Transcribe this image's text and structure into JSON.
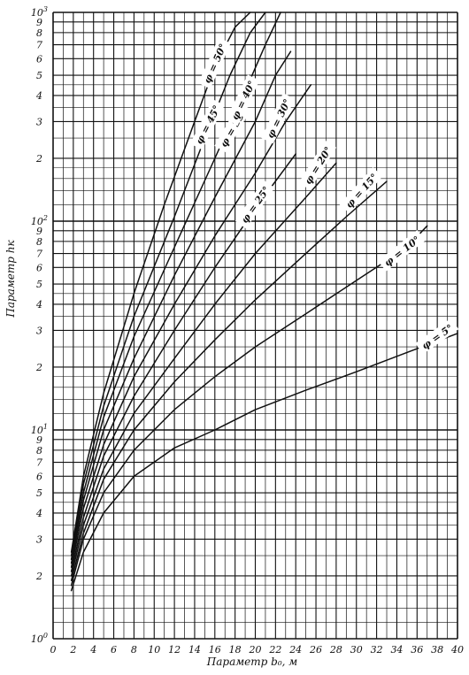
{
  "chart_data": {
    "type": "line",
    "title": "",
    "xlabel": "Параметр b₀, м",
    "ylabel": "Параметр hк",
    "xlim": [
      0,
      40
    ],
    "ylim": [
      1,
      1000
    ],
    "y_scale": "log",
    "grid": true,
    "x_ticks": [
      "0",
      "2",
      "4",
      "6",
      "8",
      "10",
      "12",
      "14",
      "16",
      "18",
      "20",
      "22",
      "24",
      "26",
      "28",
      "30",
      "32",
      "34",
      "36",
      "38",
      "40"
    ],
    "y_ticks": [
      {
        "value": 1,
        "base": "10",
        "exp": "0"
      },
      {
        "value": 2,
        "label": "2"
      },
      {
        "value": 3,
        "label": "3"
      },
      {
        "value": 4,
        "label": "4"
      },
      {
        "value": 5,
        "label": "5"
      },
      {
        "value": 6,
        "label": "6"
      },
      {
        "value": 7,
        "label": "7"
      },
      {
        "value": 8,
        "label": "8"
      },
      {
        "value": 9,
        "label": "9"
      },
      {
        "value": 10,
        "base": "10",
        "exp": "1"
      },
      {
        "value": 20,
        "label": "2"
      },
      {
        "value": 30,
        "label": "3"
      },
      {
        "value": 40,
        "label": "4"
      },
      {
        "value": 50,
        "label": "5"
      },
      {
        "value": 60,
        "label": "6"
      },
      {
        "value": 70,
        "label": "7"
      },
      {
        "value": 80,
        "label": "8"
      },
      {
        "value": 90,
        "label": "9"
      },
      {
        "value": 100,
        "base": "10",
        "exp": "2"
      },
      {
        "value": 200,
        "label": "2"
      },
      {
        "value": 300,
        "label": "3"
      },
      {
        "value": 400,
        "label": "4"
      },
      {
        "value": 500,
        "label": "5"
      },
      {
        "value": 600,
        "label": "6"
      },
      {
        "value": 700,
        "label": "7"
      },
      {
        "value": 800,
        "label": "8"
      },
      {
        "value": 900,
        "label": "9"
      },
      {
        "value": 1000,
        "base": "10",
        "exp": "3"
      }
    ],
    "series": [
      {
        "name": "φ = 5°",
        "x": [
          1.8,
          3,
          5,
          8,
          12,
          16,
          20,
          25,
          30,
          35,
          40
        ],
        "y": [
          1.7,
          2.6,
          4.0,
          6.0,
          8.2,
          10.0,
          12.5,
          15.5,
          19.0,
          23.5,
          29.0
        ]
      },
      {
        "name": "φ = 10°",
        "x": [
          1.8,
          3,
          5,
          8,
          12,
          16,
          20,
          25,
          30,
          35,
          37
        ],
        "y": [
          1.8,
          3.0,
          5.0,
          8.0,
          12.5,
          18.0,
          25.0,
          36.0,
          52.0,
          75.0,
          95.0
        ]
      },
      {
        "name": "φ = 15°",
        "x": [
          1.8,
          3,
          5,
          8,
          12,
          16,
          20,
          25,
          29,
          33
        ],
        "y": [
          1.9,
          3.2,
          5.8,
          10.0,
          17.0,
          27.0,
          42.0,
          70.0,
          105.0,
          155.0
        ]
      },
      {
        "name": "φ = 20°",
        "x": [
          1.8,
          3,
          5,
          8,
          12,
          16,
          20,
          25,
          28
        ],
        "y": [
          2.0,
          3.5,
          6.5,
          12.0,
          22.0,
          40.0,
          70.0,
          130.0,
          190.0
        ]
      },
      {
        "name": "φ = 25°",
        "x": [
          1.8,
          3,
          5,
          8,
          12,
          16,
          20,
          24
        ],
        "y": [
          2.1,
          3.8,
          7.5,
          14.5,
          30.0,
          60.0,
          115.0,
          210.0
        ]
      },
      {
        "name": "φ = 30°",
        "x": [
          1.8,
          3,
          5,
          8,
          12,
          16,
          20,
          23,
          25.5
        ],
        "y": [
          2.2,
          4.2,
          8.5,
          18.0,
          40.0,
          85.0,
          170.0,
          300.0,
          450.0
        ]
      },
      {
        "name": "φ = 35°",
        "x": [
          1.8,
          3,
          5,
          8,
          12,
          16,
          20,
          22,
          23.5
        ],
        "y": [
          2.3,
          4.6,
          10.0,
          22.0,
          55.0,
          130.0,
          300.0,
          500.0,
          650.0
        ]
      },
      {
        "name": "φ = 40°",
        "x": [
          1.8,
          3,
          5,
          8,
          12,
          16,
          19,
          21,
          22.5
        ],
        "y": [
          2.4,
          5.0,
          11.5,
          28.0,
          75.0,
          200.0,
          420.0,
          700.0,
          1000.0
        ]
      },
      {
        "name": "φ = 45°",
        "x": [
          1.8,
          3,
          5,
          8,
          12,
          15,
          17.5,
          19.5,
          21
        ],
        "y": [
          2.5,
          5.5,
          13.0,
          35.0,
          105.0,
          250.0,
          500.0,
          800.0,
          1000.0
        ]
      },
      {
        "name": "φ = 50°",
        "x": [
          1.8,
          3,
          5,
          8,
          11,
          14,
          16,
          18,
          19.5
        ],
        "y": [
          2.6,
          6.0,
          15.0,
          45.0,
          120.0,
          300.0,
          550.0,
          850.0,
          1000.0
        ]
      }
    ],
    "curve_labels": [
      {
        "text": "φ = 5°",
        "x": 38.0,
        "y": 28.0,
        "angle": -35
      },
      {
        "text": "φ = 10°",
        "x": 34.5,
        "y": 72.0,
        "angle": -38
      },
      {
        "text": "φ = 15°",
        "x": 30.5,
        "y": 140.0,
        "angle": -48
      },
      {
        "text": "φ = 20°",
        "x": 26.2,
        "y": 185.0,
        "angle": -58
      },
      {
        "text": "φ = 25°",
        "x": 20.0,
        "y": 120.0,
        "angle": -55
      },
      {
        "text": "φ = 30°",
        "x": 22.3,
        "y": 310.0,
        "angle": -64
      },
      {
        "text": "φ = 35°",
        "x": 17.8,
        "y": 280.0,
        "angle": -60
      },
      {
        "text": "φ = 40°",
        "x": 18.8,
        "y": 380.0,
        "angle": -64
      },
      {
        "text": "φ = 45°",
        "x": 15.3,
        "y": 290.0,
        "angle": -63
      },
      {
        "text": "φ = 50°",
        "x": 16.0,
        "y": 570.0,
        "angle": -66
      }
    ]
  }
}
